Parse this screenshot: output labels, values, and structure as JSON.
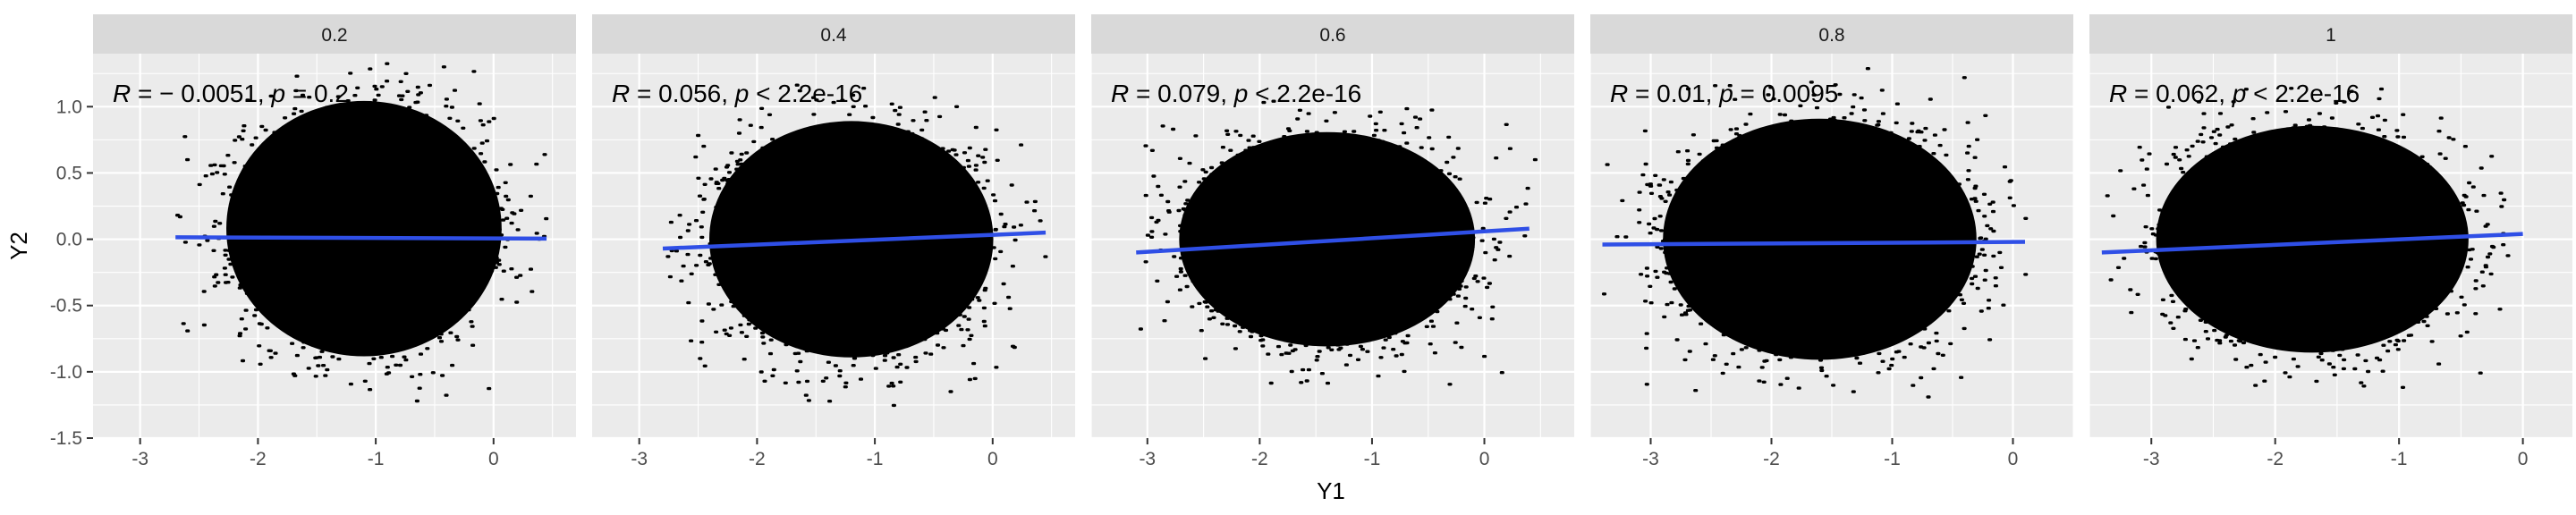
{
  "chart_data": {
    "type": "scatter",
    "facet_variable_values": [
      "0.2",
      "0.4",
      "0.6",
      "0.8",
      "1"
    ],
    "xlabel": "Y1",
    "ylabel": "Y2",
    "ylim": [
      -1.5,
      1.4
    ],
    "y_ticks": [
      "-1.5",
      "-1.0",
      "-0.5",
      "0.0",
      "0.5",
      "1.0"
    ],
    "x_ticks": [
      "-3",
      "-2",
      "-1",
      "0"
    ],
    "grid": true,
    "point_color": "#000000",
    "line_color": "#2f4fe6",
    "panels": [
      {
        "label": "0.2",
        "xlim": [
          -3.4,
          0.7
        ],
        "r": "− 0.0051",
        "p_op": "=",
        "p": "0.2",
        "fit": {
          "x": [
            -2.7,
            0.45
          ],
          "y": [
            0.015,
            0.005
          ]
        },
        "cloud": {
          "x_min": -2.7,
          "x_max": 0.45,
          "x_center": -1.1,
          "y_center": 0.08,
          "y_min": -1.35,
          "y_max": 1.33
        }
      },
      {
        "label": "0.4",
        "xlim": [
          -3.4,
          0.7
        ],
        "r": "0.056",
        "p_op": "<",
        "p": "2.2e-16",
        "fit": {
          "x": [
            -2.8,
            0.45
          ],
          "y": [
            -0.07,
            0.05
          ]
        },
        "cloud": {
          "x_min": -2.8,
          "x_max": 0.45,
          "x_center": -1.2,
          "y_center": 0.0,
          "y_min": -1.3,
          "y_max": 1.18
        }
      },
      {
        "label": "0.6",
        "xlim": [
          -3.5,
          0.8
        ],
        "r": "0.079",
        "p_op": "<",
        "p": "2.2e-16",
        "fit": {
          "x": [
            -3.1,
            0.4
          ],
          "y": [
            -0.1,
            0.08
          ]
        },
        "cloud": {
          "x_min": -3.1,
          "x_max": 0.45,
          "x_center": -1.4,
          "y_center": 0.0,
          "y_min": -1.15,
          "y_max": 1.1
        }
      },
      {
        "label": "0.8",
        "xlim": [
          -3.5,
          0.5
        ],
        "r": "0.01",
        "p_op": "=",
        "p": "0.0095",
        "fit": {
          "x": [
            -3.4,
            0.1
          ],
          "y": [
            -0.04,
            -0.02
          ]
        },
        "cloud": {
          "x_min": -3.4,
          "x_max": 0.1,
          "x_center": -1.6,
          "y_center": 0.0,
          "y_min": -1.2,
          "y_max": 1.33
        }
      },
      {
        "label": "1",
        "xlim": [
          -3.5,
          0.4
        ],
        "r": "0.062",
        "p_op": "<",
        "p": "2.2e-16",
        "fit": {
          "x": [
            -3.4,
            0.0
          ],
          "y": [
            -0.1,
            0.04
          ]
        },
        "cloud": {
          "x_min": -3.4,
          "x_max": 0.0,
          "x_center": -1.7,
          "y_center": 0.0,
          "y_min": -1.2,
          "y_max": 1.18
        }
      }
    ]
  }
}
